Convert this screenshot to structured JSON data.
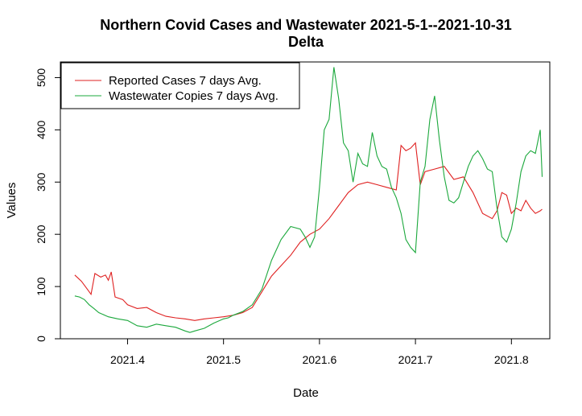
{
  "chart_data": {
    "type": "line",
    "title": "Northern Covid Cases and Wastewater 2021-5-1--2021-10-31",
    "subtitle": "Delta",
    "xlabel": "Date",
    "ylabel": "Values",
    "xlim": [
      2021.33,
      2021.84
    ],
    "ylim": [
      0,
      530
    ],
    "x_ticks": [
      2021.4,
      2021.5,
      2021.6,
      2021.7,
      2021.8
    ],
    "x_tick_labels": [
      "2021.4",
      "2021.5",
      "2021.6",
      "2021.7",
      "2021.8"
    ],
    "y_ticks": [
      0,
      100,
      200,
      300,
      400,
      500
    ],
    "y_tick_labels": [
      "0",
      "100",
      "200",
      "300",
      "400",
      "500"
    ],
    "grid": false,
    "legend_position": "top-left",
    "series": [
      {
        "name": "Reported Cases 7 days Avg.",
        "color": "#DF2020",
        "x": [
          2021.345,
          2021.352,
          2021.358,
          2021.362,
          2021.366,
          2021.372,
          2021.377,
          2021.38,
          2021.383,
          2021.387,
          2021.395,
          2021.4,
          2021.41,
          2021.42,
          2021.43,
          2021.44,
          2021.45,
          2021.46,
          2021.47,
          2021.48,
          2021.49,
          2021.5,
          2021.51,
          2021.52,
          2021.53,
          2021.54,
          2021.55,
          2021.56,
          2021.57,
          2021.58,
          2021.59,
          2021.6,
          2021.61,
          2021.62,
          2021.63,
          2021.64,
          2021.65,
          2021.66,
          2021.67,
          2021.68,
          2021.685,
          2021.69,
          2021.695,
          2021.7,
          2021.705,
          2021.71,
          2021.72,
          2021.73,
          2021.74,
          2021.75,
          2021.76,
          2021.77,
          2021.78,
          2021.785,
          2021.79,
          2021.795,
          2021.8,
          2021.805,
          2021.81,
          2021.815,
          2021.82,
          2021.825,
          2021.83,
          2021.832
        ],
        "y": [
          122,
          110,
          95,
          85,
          125,
          118,
          122,
          112,
          128,
          80,
          75,
          65,
          58,
          60,
          50,
          43,
          40,
          38,
          35,
          38,
          40,
          42,
          45,
          50,
          60,
          90,
          120,
          140,
          160,
          185,
          200,
          210,
          230,
          255,
          280,
          295,
          300,
          295,
          290,
          285,
          370,
          360,
          365,
          375,
          295,
          320,
          325,
          330,
          305,
          310,
          280,
          240,
          230,
          245,
          280,
          275,
          240,
          250,
          245,
          265,
          250,
          240,
          245,
          248
        ]
      },
      {
        "name": "Wastewater Copies 7 days Avg.",
        "color": "#1BA83C",
        "x": [
          2021.345,
          2021.35,
          2021.355,
          2021.36,
          2021.365,
          2021.37,
          2021.38,
          2021.39,
          2021.4,
          2021.41,
          2021.42,
          2021.43,
          2021.44,
          2021.45,
          2021.46,
          2021.465,
          2021.47,
          2021.48,
          2021.49,
          2021.5,
          2021.505,
          2021.51,
          2021.52,
          2021.53,
          2021.54,
          2021.55,
          2021.56,
          2021.57,
          2021.58,
          2021.585,
          2021.59,
          2021.595,
          2021.6,
          2021.605,
          2021.61,
          2021.615,
          2021.62,
          2021.625,
          2021.63,
          2021.635,
          2021.64,
          2021.645,
          2021.65,
          2021.655,
          2021.66,
          2021.665,
          2021.67,
          2021.675,
          2021.68,
          2021.685,
          2021.69,
          2021.695,
          2021.7,
          2021.705,
          2021.71,
          2021.715,
          2021.72,
          2021.725,
          2021.73,
          2021.735,
          2021.74,
          2021.745,
          2021.75,
          2021.755,
          2021.76,
          2021.765,
          2021.77,
          2021.775,
          2021.78,
          2021.785,
          2021.79,
          2021.795,
          2021.8,
          2021.805,
          2021.81,
          2021.815,
          2021.82,
          2021.825,
          2021.83,
          2021.832
        ],
        "y": [
          82,
          80,
          75,
          65,
          58,
          50,
          42,
          38,
          35,
          25,
          22,
          28,
          25,
          22,
          15,
          12,
          15,
          20,
          30,
          38,
          40,
          45,
          52,
          65,
          95,
          150,
          190,
          215,
          210,
          195,
          175,
          195,
          290,
          400,
          420,
          520,
          460,
          375,
          360,
          300,
          355,
          335,
          330,
          395,
          350,
          330,
          325,
          290,
          270,
          240,
          190,
          175,
          165,
          300,
          330,
          420,
          465,
          380,
          310,
          265,
          260,
          270,
          300,
          330,
          350,
          360,
          345,
          325,
          320,
          250,
          195,
          185,
          210,
          260,
          320,
          350,
          360,
          355,
          400,
          310
        ]
      }
    ]
  }
}
